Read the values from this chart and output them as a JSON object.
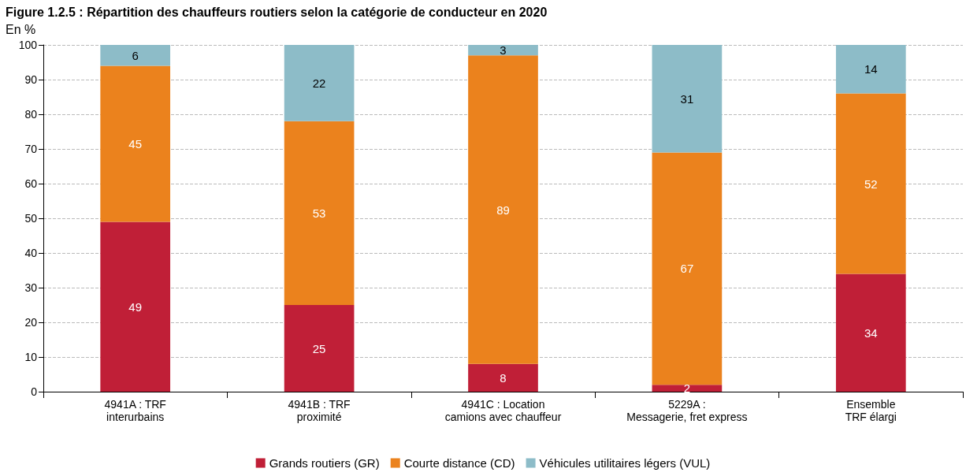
{
  "chart_data": {
    "type": "bar",
    "title": "Figure 1.2.5 : Répartition des chauffeurs routiers selon la catégorie de conducteur en 2020",
    "ylabel": "En %",
    "categories": [
      "4941A : TRF\ninterurbains",
      "4941B : TRF\nproximité",
      "4941C : Location\ncamions avec chauffeur",
      "5229A :\nMessagerie, fret express",
      "Ensemble\nTRF élargi"
    ],
    "series": [
      {
        "name": "Grands routiers (GR)",
        "color": "#c01f37",
        "values": [
          49,
          25,
          8,
          2,
          34
        ]
      },
      {
        "name": "Courte distance (CD)",
        "color": "#eb821d",
        "values": [
          45,
          53,
          89,
          67,
          52
        ]
      },
      {
        "name": "Véhicules utilitaires légers (VUL)",
        "color": "#8dbcc8",
        "values": [
          6,
          22,
          3,
          31,
          14
        ]
      }
    ],
    "stacked": true,
    "ylim": [
      0,
      100
    ],
    "yticks": [
      0,
      10,
      20,
      30,
      40,
      50,
      60,
      70,
      80,
      90,
      100
    ],
    "grid": "y",
    "legend": "bottom",
    "data_labels": true
  }
}
